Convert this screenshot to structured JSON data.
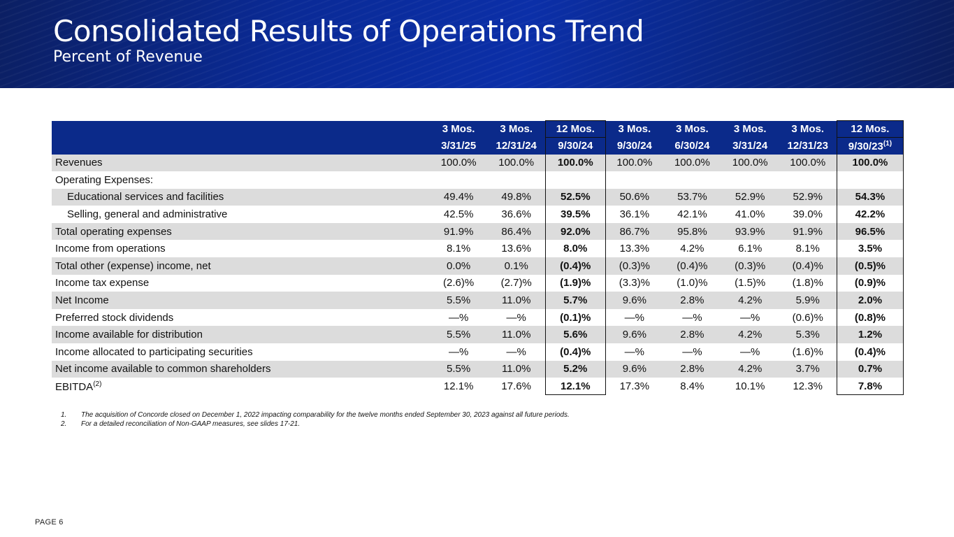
{
  "header": {
    "title": "Consolidated Results of Operations Trend",
    "subtitle": "Percent of Revenue"
  },
  "table": {
    "columns": [
      {
        "period": "3 Mos.",
        "date": "3/31/25",
        "note": ""
      },
      {
        "period": "3 Mos.",
        "date": "12/31/24",
        "note": ""
      },
      {
        "period": "12 Mos.",
        "date": "9/30/24",
        "note": ""
      },
      {
        "period": "3 Mos.",
        "date": "9/30/24",
        "note": ""
      },
      {
        "period": "3 Mos.",
        "date": "6/30/24",
        "note": ""
      },
      {
        "period": "3 Mos.",
        "date": "3/31/24",
        "note": ""
      },
      {
        "period": "3 Mos.",
        "date": "12/31/23",
        "note": ""
      },
      {
        "period": "12 Mos.",
        "date": "9/30/23",
        "note": "(1)"
      }
    ],
    "rows": [
      {
        "label": "Revenues",
        "note": "",
        "values": [
          "100.0%",
          "100.0%",
          "100.0%",
          "100.0%",
          "100.0%",
          "100.0%",
          "100.0%",
          "100.0%"
        ]
      },
      {
        "label": "Operating Expenses:",
        "note": "",
        "values": [
          "",
          "",
          "",
          "",
          "",
          "",
          "",
          ""
        ]
      },
      {
        "label": "Educational services and facilities",
        "note": "",
        "values": [
          "49.4%",
          "49.8%",
          "52.5%",
          "50.6%",
          "53.7%",
          "52.9%",
          "52.9%",
          "54.3%"
        ]
      },
      {
        "label": "Selling, general and administrative",
        "note": "",
        "values": [
          "42.5%",
          "36.6%",
          "39.5%",
          "36.1%",
          "42.1%",
          "41.0%",
          "39.0%",
          "42.2%"
        ]
      },
      {
        "label": "Total operating expenses",
        "note": "",
        "values": [
          "91.9%",
          "86.4%",
          "92.0%",
          "86.7%",
          "95.8%",
          "93.9%",
          "91.9%",
          "96.5%"
        ]
      },
      {
        "label": "Income from operations",
        "note": "",
        "values": [
          "8.1%",
          "13.6%",
          "8.0%",
          "13.3%",
          "4.2%",
          "6.1%",
          "8.1%",
          "3.5%"
        ]
      },
      {
        "label": "Total other (expense) income, net",
        "note": "",
        "values": [
          "0.0%",
          "0.1%",
          "(0.4)%",
          "(0.3)%",
          "(0.4)%",
          "(0.3)%",
          "(0.4)%",
          "(0.5)%"
        ]
      },
      {
        "label": "Income tax expense",
        "note": "",
        "values": [
          "(2.6)%",
          "(2.7)%",
          "(1.9)%",
          "(3.3)%",
          "(1.0)%",
          "(1.5)%",
          "(1.8)%",
          "(0.9)%"
        ]
      },
      {
        "label": "Net Income",
        "note": "",
        "values": [
          "5.5%",
          "11.0%",
          "5.7%",
          "9.6%",
          "2.8%",
          "4.2%",
          "5.9%",
          "2.0%"
        ]
      },
      {
        "label": "Preferred stock dividends",
        "note": "",
        "values": [
          "—%",
          "—%",
          "(0.1)%",
          "—%",
          "—%",
          "—%",
          "(0.6)%",
          "(0.8)%"
        ]
      },
      {
        "label": "Income available for distribution",
        "note": "",
        "values": [
          "5.5%",
          "11.0%",
          "5.6%",
          "9.6%",
          "2.8%",
          "4.2%",
          "5.3%",
          "1.2%"
        ]
      },
      {
        "label": "Income allocated to participating securities",
        "note": "",
        "values": [
          "—%",
          "—%",
          "(0.4)%",
          "—%",
          "—%",
          "—%",
          "(1.6)%",
          "(0.4)%"
        ]
      },
      {
        "label": "Net income available to common shareholders",
        "note": "",
        "values": [
          "5.5%",
          "11.0%",
          "5.2%",
          "9.6%",
          "2.8%",
          "4.2%",
          "3.7%",
          "0.7%"
        ]
      },
      {
        "label": "EBITDA",
        "note": "(2)",
        "values": [
          "12.1%",
          "17.6%",
          "12.1%",
          "17.3%",
          "8.4%",
          "10.1%",
          "12.3%",
          "7.8%"
        ]
      }
    ]
  },
  "footnotes": [
    {
      "num": "1.",
      "text": "The acquisition of Concorde closed on December 1, 2022 impacting comparability for the twelve months ended September 30, 2023 against all future periods."
    },
    {
      "num": "2.",
      "text": "For a detailed reconciliation of Non-GAAP measures, see slides 17-21."
    }
  ],
  "page_label": "PAGE 6",
  "colors": {
    "banner": "#0b2fa8",
    "table_header": "#0b2a8a",
    "row_shade": "#dcdcdc"
  }
}
